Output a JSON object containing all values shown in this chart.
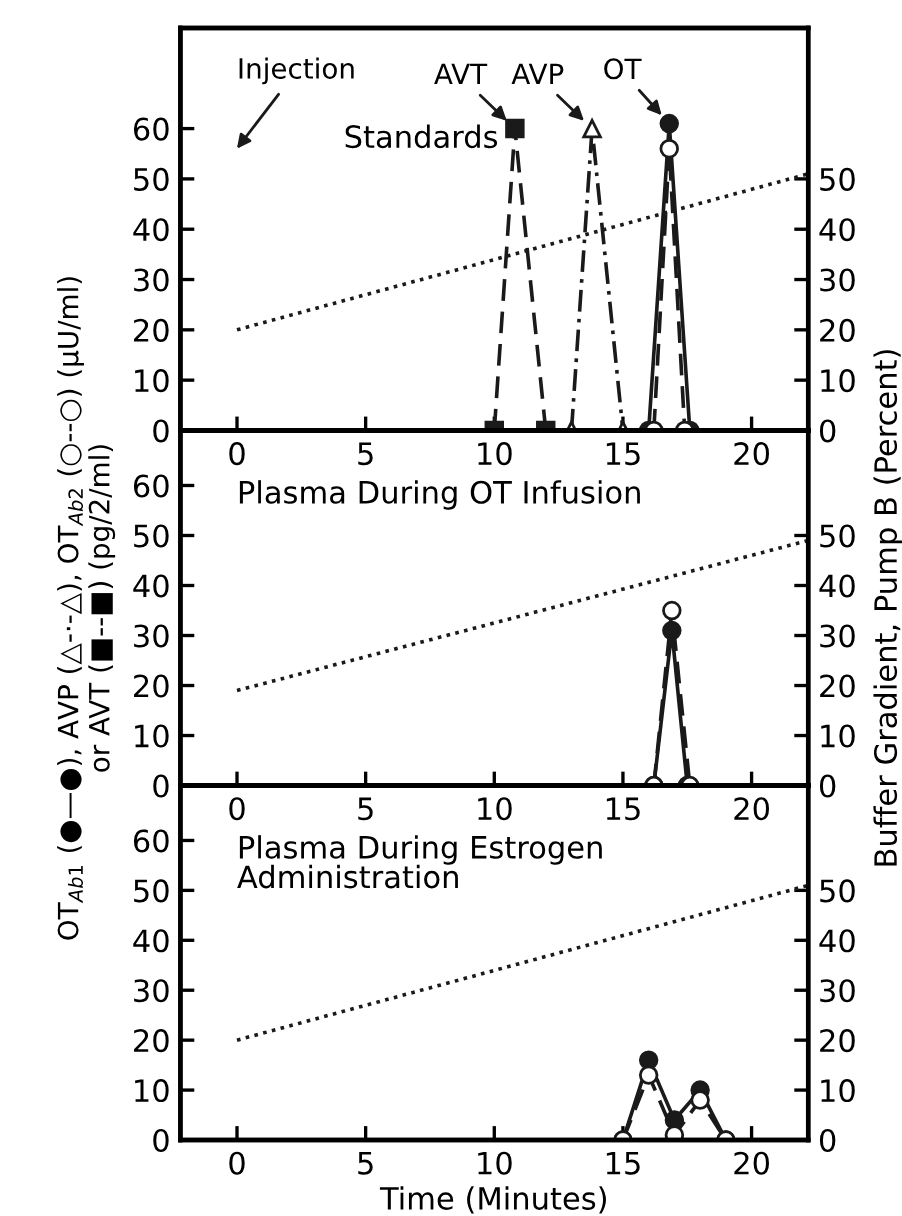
{
  "chart_data": [
    {
      "type": "line",
      "title": "Standards",
      "xlim": [
        -2.2,
        22.2
      ],
      "xticks": [
        0,
        5,
        10,
        15,
        20
      ],
      "ylim": [
        0,
        80
      ],
      "yticks": [
        0,
        10,
        20,
        30,
        40,
        50,
        60
      ],
      "y2lim": [
        0,
        80
      ],
      "y2ticks": [
        0,
        10,
        20,
        30,
        40,
        50
      ],
      "grid": false,
      "legend": false,
      "series": [
        {
          "axis": "y2",
          "color": "#1a1a1a",
          "line_style": "dotted",
          "marker": "none",
          "x": [
            0,
            22.2
          ],
          "values": [
            20,
            51
          ]
        },
        {
          "color": "#1a1a1a",
          "line_style": "dashed",
          "marker": "square",
          "x": [
            10,
            10.8,
            12
          ],
          "values": [
            0,
            60,
            0
          ]
        },
        {
          "color": "#1a1a1a",
          "line_style": "dashdot",
          "marker": "triangle",
          "x": [
            13,
            13.8,
            15
          ],
          "values": [
            0,
            60,
            0
          ]
        },
        {
          "color": "#1a1a1a",
          "line_style": "solid",
          "marker": "circle",
          "x": [
            16,
            16.8,
            17.6
          ],
          "values": [
            0,
            61,
            0
          ]
        },
        {
          "color": "#1a1a1a",
          "line_style": "dashed",
          "marker": "open circle",
          "x": [
            16.2,
            16.8,
            17.4
          ],
          "values": [
            0,
            56,
            0
          ]
        }
      ],
      "annotations": [
        "Injection",
        {
          "text": "AVT",
          "x": 10.8,
          "y": 60
        },
        {
          "text": "AVP",
          "x": 13.8,
          "y": 60
        },
        {
          "text": "OT",
          "x": 16.8,
          "y": 61
        }
      ]
    },
    {
      "type": "line",
      "title": "Plasma During OT Infusion",
      "ylabel": "OT$_{Ab1}$ (●—●), AVP (△-·-△), OT$_{Ab2}$ (○--○) (μU/ml)\nor AVT (■--■) (pg/2/ml)",
      "y2label": "Buffer Gradient, Pump B (Percent)",
      "xlim": [
        -2.2,
        22.2
      ],
      "xticks": [
        0,
        5,
        10,
        15,
        20
      ],
      "ylim": [
        0,
        71
      ],
      "yticks": [
        0,
        10,
        20,
        30,
        40,
        50,
        60
      ],
      "y2lim": [
        0,
        71
      ],
      "y2ticks": [
        0,
        10,
        20,
        30,
        40,
        50
      ],
      "grid": false,
      "legend": false,
      "series": [
        {
          "axis": "y2",
          "color": "#1a1a1a",
          "line_style": "dotted",
          "marker": "none",
          "x": [
            0,
            22.2
          ],
          "values": [
            19,
            49
          ]
        },
        {
          "color": "#1a1a1a",
          "line_style": "solid",
          "marker": "circle",
          "x": [
            16.2,
            16.9,
            17.5
          ],
          "values": [
            0,
            31,
            0
          ]
        },
        {
          "color": "#1a1a1a",
          "line_style": "dashed",
          "marker": "open circle",
          "x": [
            16.2,
            16.9,
            17.6
          ],
          "values": [
            0,
            35,
            0
          ]
        }
      ]
    },
    {
      "type": "line",
      "title": "Plasma During Estrogen\nAdministration",
      "xlabel": "Time (Minutes)",
      "xlim": [
        -2.2,
        22.2
      ],
      "xticks": [
        0,
        5,
        10,
        15,
        20
      ],
      "ylim": [
        0,
        71
      ],
      "yticks": [
        0,
        10,
        20,
        30,
        40,
        50,
        60
      ],
      "y2lim": [
        0,
        71
      ],
      "y2ticks": [
        0,
        10,
        20,
        30,
        40,
        50
      ],
      "grid": false,
      "legend": false,
      "series": [
        {
          "axis": "y2",
          "color": "#1a1a1a",
          "line_style": "dotted",
          "marker": "none",
          "x": [
            0,
            22.2
          ],
          "values": [
            20,
            51
          ]
        },
        {
          "color": "#1a1a1a",
          "line_style": "solid",
          "marker": "circle",
          "x": [
            15,
            16,
            17,
            18,
            19
          ],
          "values": [
            0,
            16,
            4,
            10,
            0
          ]
        },
        {
          "color": "#1a1a1a",
          "line_style": "dashed",
          "marker": "open circle",
          "x": [
            15,
            16,
            17,
            18,
            19
          ],
          "values": [
            0,
            13,
            1,
            8,
            0
          ]
        }
      ]
    }
  ]
}
